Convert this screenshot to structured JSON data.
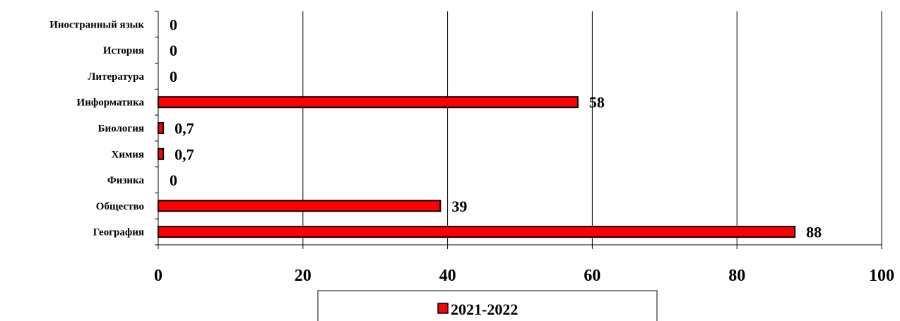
{
  "chart_data": {
    "type": "bar",
    "orientation": "horizontal",
    "categories": [
      "Иностранный язык",
      "История",
      "Литература",
      "Информатика",
      "Биология",
      "Химия",
      "Физика",
      "Общество",
      "География"
    ],
    "series": [
      {
        "name": "2021-2022",
        "color": "#ff0000",
        "values": [
          0,
          0,
          0,
          58,
          0.7,
          0.7,
          0,
          39,
          88
        ],
        "labels": [
          "0",
          "0",
          "0",
          "58",
          "0,7",
          "0,7",
          "0",
          "39",
          "88"
        ]
      }
    ],
    "xlim": [
      0,
      100
    ],
    "xticks": [
      0,
      20,
      40,
      60,
      80,
      100
    ],
    "grid": "vertical",
    "legend_position": "bottom"
  }
}
